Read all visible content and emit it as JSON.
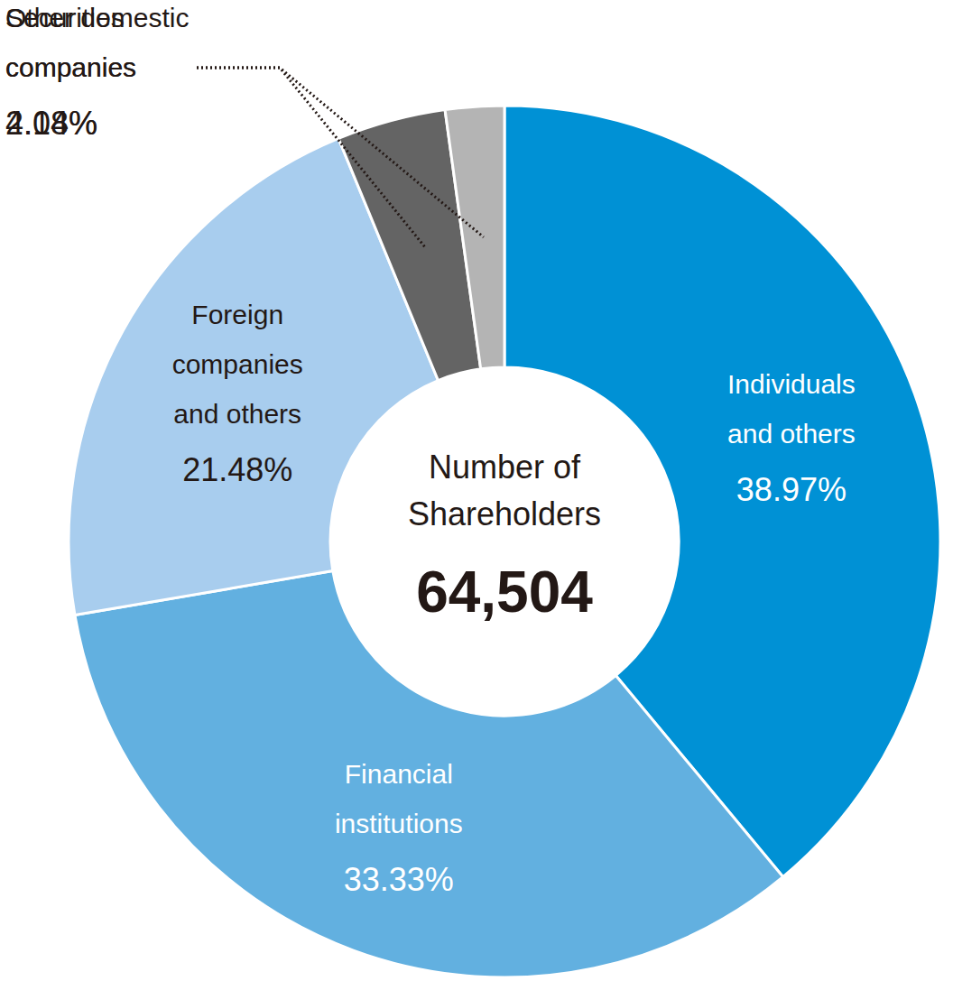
{
  "chart_data": {
    "type": "donut",
    "title": "Number of Shareholders",
    "annotations": [
      {
        "value": 64504,
        "label": "64,504"
      }
    ],
    "categories": [
      "Individuals\nand others",
      "Financial\ninstitutions",
      "Foreign\ncompanies\nand others",
      "Other domestic\ncompanies",
      "Securities\ncompanies"
    ],
    "values": [
      38.97,
      33.33,
      21.48,
      4.04,
      2.18
    ],
    "value_labels": [
      "38.97%",
      "33.33%",
      "21.48%",
      "4.04%",
      "2.18%"
    ],
    "colors": [
      "#0091d5",
      "#62b0e0",
      "#a8cdee",
      "#646464",
      "#b4b4b4"
    ],
    "data_labels": true
  }
}
